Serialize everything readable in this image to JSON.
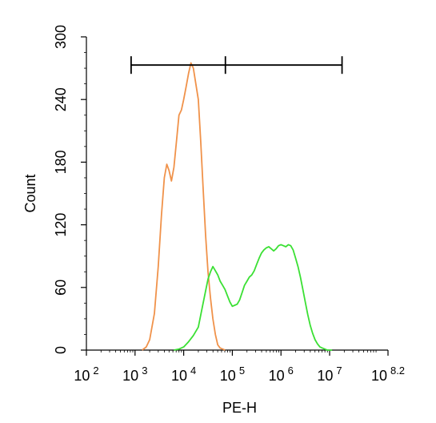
{
  "chart_data": {
    "type": "line",
    "xlabel": "PE-H",
    "ylabel": "Count",
    "x_scale": "log10",
    "xlim": [
      100,
      158489319
    ],
    "ylim": [
      0,
      300
    ],
    "x_ticks": [
      {
        "value": 100,
        "base": "10",
        "exp": "2"
      },
      {
        "value": 1000,
        "base": "10",
        "exp": "3"
      },
      {
        "value": 10000,
        "base": "10",
        "exp": "4"
      },
      {
        "value": 100000,
        "base": "10",
        "exp": "5"
      },
      {
        "value": 1000000,
        "base": "10",
        "exp": "6"
      },
      {
        "value": 10000000,
        "base": "10",
        "exp": "7"
      },
      {
        "value": 158489319,
        "base": "10",
        "exp": "8.2"
      }
    ],
    "y_ticks": [
      {
        "value": 0,
        "label": "0"
      },
      {
        "value": 60,
        "label": "60"
      },
      {
        "value": 120,
        "label": "120"
      },
      {
        "value": 180,
        "label": "180"
      },
      {
        "value": 240,
        "label": "240"
      },
      {
        "value": 300,
        "label": "300"
      }
    ],
    "gate": {
      "x_start": 830,
      "x_mid": 72000,
      "x_end": 18000000,
      "y": 273
    },
    "grid": false,
    "series": [
      {
        "color": "#f0924a",
        "x": [
          1400,
          1700,
          2000,
          2500,
          3000,
          3500,
          4000,
          4500,
          5000,
          5600,
          6300,
          7100,
          8000,
          9000,
          10000,
          11200,
          12600,
          14100,
          15800,
          17800,
          20000,
          22400,
          25100,
          28200,
          31600,
          35500,
          39800,
          44700,
          50100,
          56200,
          63100,
          70800
        ],
        "y": [
          0,
          3,
          10,
          35,
          80,
          130,
          165,
          178,
          172,
          162,
          175,
          200,
          225,
          230,
          240,
          252,
          265,
          275,
          270,
          255,
          240,
          200,
          155,
          110,
          75,
          50,
          30,
          15,
          5,
          2,
          1,
          0
        ]
      },
      {
        "color": "#3be034",
        "x": [
          6300,
          8000,
          10000,
          12600,
          15800,
          20000,
          25100,
          31600,
          35500,
          39800,
          44700,
          50100,
          56200,
          63100,
          70800,
          79400,
          89100,
          100000,
          112200,
          125900,
          141300,
          158500,
          177800,
          199500,
          223900,
          251200,
          281800,
          316200,
          354800,
          398100,
          446700,
          501200,
          562300,
          631000,
          707900,
          794300,
          891300,
          1000000,
          1122000,
          1259000,
          1413000,
          1585000,
          1778000,
          1995000,
          2239000,
          2512000,
          2818000,
          3162000,
          3548000,
          3981000,
          4467000,
          5012000,
          5623000,
          6310000,
          7079000,
          7943000,
          8913000,
          10000000,
          11220000
        ],
        "y": [
          0,
          1,
          3,
          8,
          14,
          22,
          45,
          68,
          75,
          80,
          76,
          72,
          66,
          62,
          58,
          52,
          46,
          42,
          43,
          44,
          48,
          55,
          62,
          66,
          70,
          72,
          76,
          82,
          88,
          93,
          96,
          98,
          99,
          97,
          95,
          97,
          100,
          101,
          100,
          99,
          101,
          100,
          96,
          88,
          80,
          70,
          58,
          46,
          34,
          24,
          16,
          10,
          6,
          3,
          2,
          1,
          0,
          0,
          0
        ]
      }
    ]
  }
}
